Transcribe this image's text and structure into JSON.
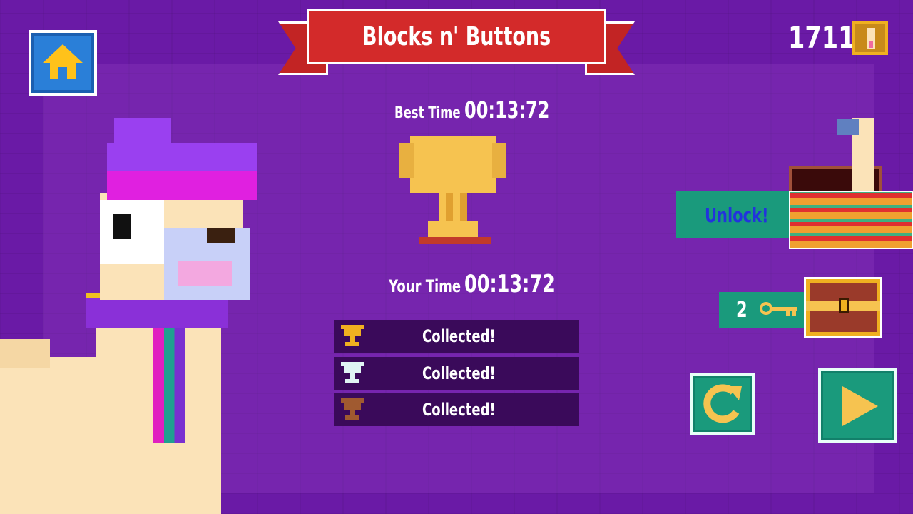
{
  "title": "Blocks n' Buttons",
  "coins": "1711",
  "best_time_label": "Best Time",
  "best_time": "00:13:72",
  "your_time_label": "Your Time",
  "your_time": "00:13:72",
  "trophies": [
    {
      "tier": "gold",
      "color": "#f0b020",
      "status": "Collected!"
    },
    {
      "tier": "silver",
      "color": "#e0f4f4",
      "status": "Collected!"
    },
    {
      "tier": "bronze",
      "color": "#a05a30",
      "status": "Collected!"
    }
  ],
  "unlock_label": "Unlock!",
  "keys_count": "2",
  "icons": {
    "home": "home-icon",
    "coin": "llama-coin-icon",
    "key": "key-icon",
    "chest": "treasure-chest-icon",
    "replay": "replay-icon",
    "play": "play-icon"
  },
  "colors": {
    "banner": "#d32a2a",
    "button": "#1a9a7c",
    "unlock_text": "#2233dd",
    "background": "#6a1aa6"
  }
}
